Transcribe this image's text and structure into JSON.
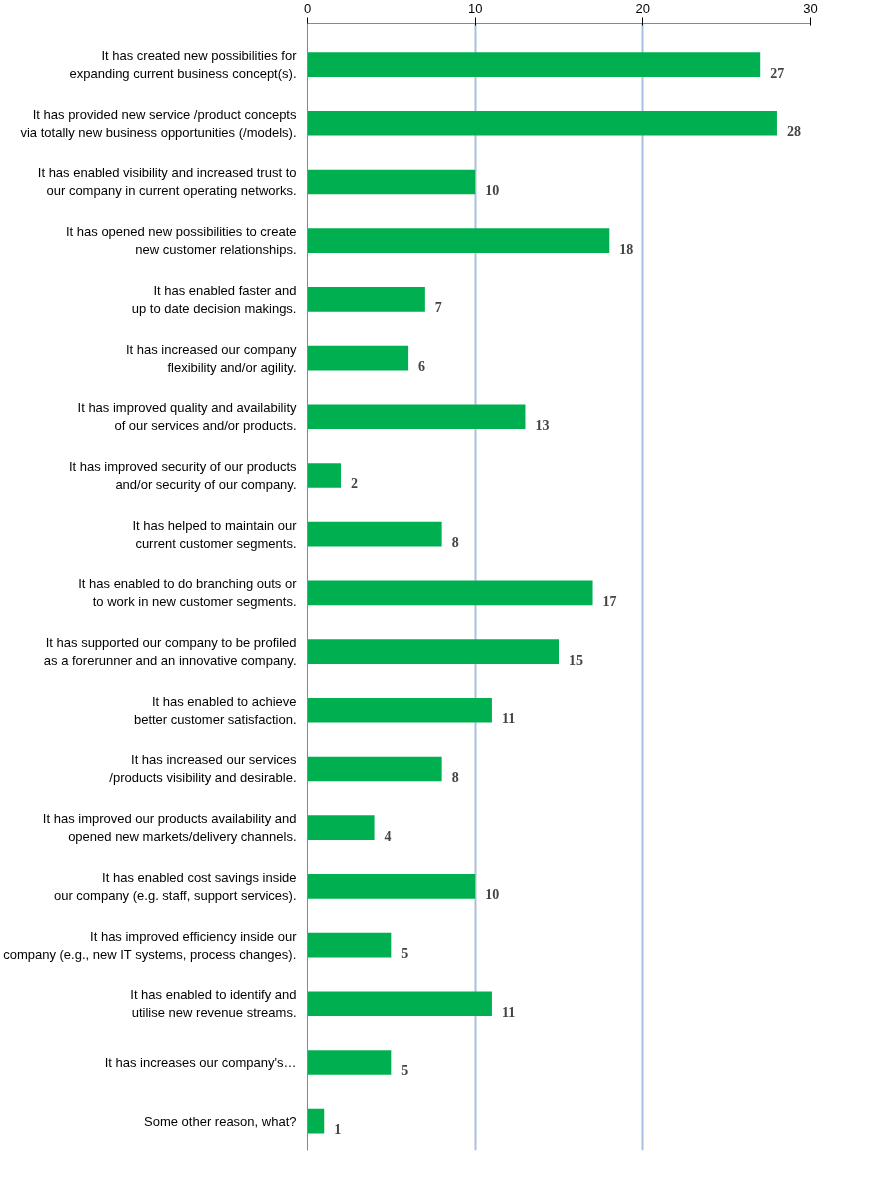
{
  "chart_data": {
    "type": "bar",
    "orientation": "horizontal",
    "categories": [
      "It has created new possibilities for\nexpanding current business concept(s).",
      "It has provided new service /product concepts\nvia totally new business opportunities (/models).",
      "It has enabled visibility and increased trust to\nour company in current operating networks.",
      "It has opened new possibilities to create\nnew customer relationships.",
      "It has enabled faster and\nup to date decision makings.",
      "It has increased our company\nflexibility and/or agility.",
      "It has improved quality and availability\nof our services and/or products.",
      "It has improved security of our products\nand/or security of our company.",
      "It has helped to maintain our\ncurrent customer segments.",
      "It has enabled to do branching outs or\nto work in new customer segments.",
      "It has supported our company to be profiled\nas a forerunner and an innovative company.",
      "It has enabled to achieve\nbetter customer satisfaction.",
      "It has increased our services\n/products visibility and desirable.",
      "It has improved our products availability and\nopened new markets/delivery channels.",
      "It has enabled cost savings inside\nour company (e.g. staff, support services).",
      "It has improved efficiency inside our\ncompany (e.g., new IT systems, process changes).",
      "It has enabled to identify and\nutilise new revenue streams.",
      "It has increases our company's…",
      "Some other reason, what?"
    ],
    "values": [
      27,
      28,
      10,
      18,
      7,
      6,
      13,
      2,
      8,
      17,
      15,
      11,
      8,
      4,
      10,
      5,
      11,
      5,
      1
    ],
    "color": "#00b050",
    "xlim": [
      0,
      30
    ],
    "xticks": [
      0,
      10,
      20,
      30
    ],
    "grid": "x",
    "data_labels": true
  }
}
